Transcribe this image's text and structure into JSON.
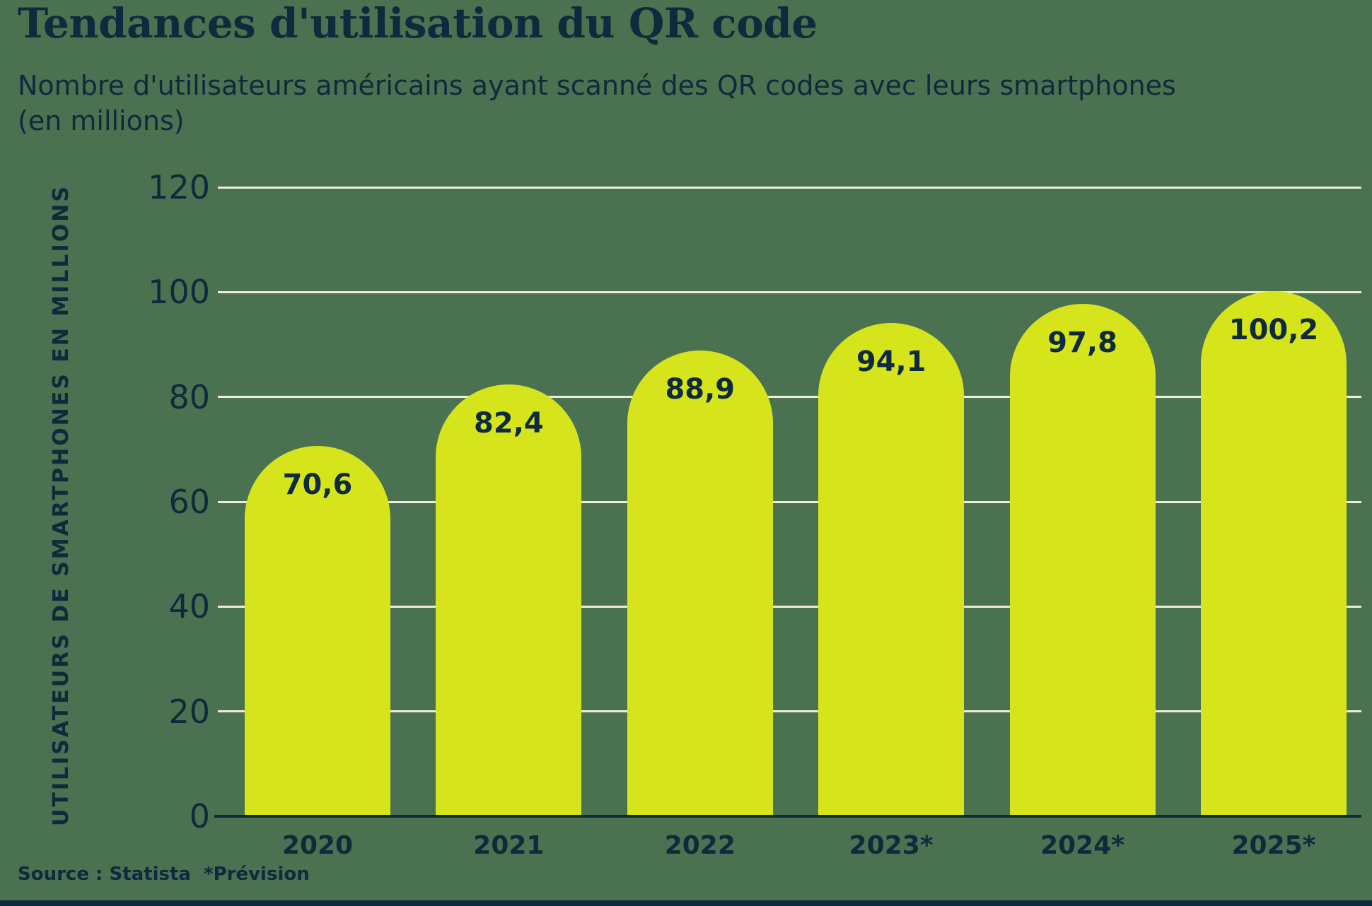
{
  "title": "Tendances d'utilisation du QR code",
  "subtitle_line1": "Nombre d'utilisateurs américains ayant scanné des QR codes avec leurs smartphones",
  "subtitle_line2": "(en millions)",
  "source": "Source : Statista",
  "footnote": "*Prévision",
  "colors": {
    "background": "#4a7150",
    "bar": "#d6e41c",
    "text_navy": "#0e2a3c",
    "gridline": "#f0ecd8"
  },
  "chart_data": {
    "type": "bar",
    "title": "Tendances d'utilisation du QR code",
    "subtitle": "Nombre d'utilisateurs américains ayant scanné des QR codes avec leurs smartphones (en millions)",
    "xlabel": "",
    "ylabel": "UTILISATEURS DE SMARTPHONES EN MILLIONS",
    "categories": [
      "2020",
      "2021",
      "2022",
      "2023*",
      "2024*",
      "2025*"
    ],
    "values": [
      70.6,
      82.4,
      88.9,
      94.1,
      97.8,
      100.2
    ],
    "value_labels": [
      "70,6",
      "82,4",
      "88,9",
      "94,1",
      "97,8",
      "100,2"
    ],
    "yticks": [
      0,
      20,
      40,
      60,
      80,
      100,
      120
    ],
    "ylim": [
      0,
      124
    ],
    "grid": "horizontal",
    "legend": "none",
    "bar_color": "#d6e41c",
    "source": "Source : Statista",
    "footnote": "*Prévision"
  }
}
